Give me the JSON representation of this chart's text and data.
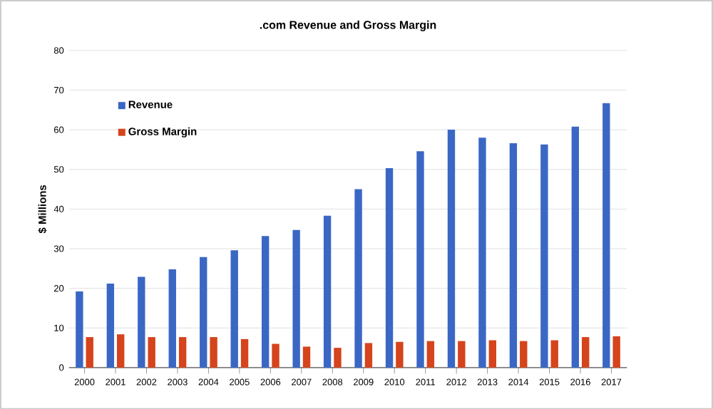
{
  "chart_data": {
    "type": "bar",
    "title": ".com Revenue and Gross Margin",
    "ylabel": "$ Millions",
    "categories": [
      "2000",
      "2001",
      "2002",
      "2003",
      "2004",
      "2005",
      "2006",
      "2007",
      "2008",
      "2009",
      "2010",
      "2011",
      "2012",
      "2013",
      "2014",
      "2015",
      "2016",
      "2017"
    ],
    "series": [
      {
        "name": "Revenue",
        "color": "#3a67c4",
        "values": [
          19.2,
          21.2,
          22.9,
          24.8,
          27.9,
          29.6,
          33.2,
          34.7,
          38.3,
          45.0,
          50.3,
          54.6,
          60.0,
          58.0,
          56.6,
          56.3,
          60.8,
          66.7
        ]
      },
      {
        "name": "Gross Margin",
        "color": "#d5441c",
        "values": [
          7.7,
          8.4,
          7.7,
          7.7,
          7.7,
          7.2,
          6.0,
          5.3,
          5.0,
          6.2,
          6.5,
          6.7,
          6.7,
          6.9,
          6.7,
          6.9,
          7.7,
          7.9
        ]
      }
    ],
    "ylim": [
      0,
      80
    ],
    "yticks": [
      0,
      10,
      20,
      30,
      40,
      50,
      60,
      70,
      80
    ],
    "grid": "y",
    "legend": "top left"
  }
}
